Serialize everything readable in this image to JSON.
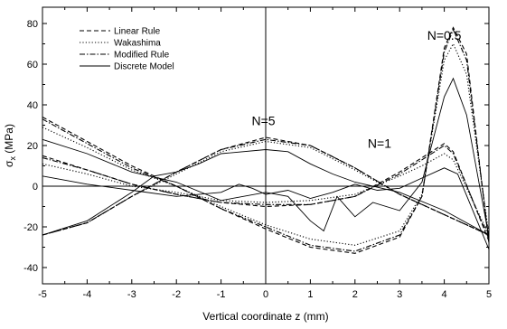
{
  "chart_data": {
    "type": "line",
    "xlabel": "Vertical coordinate z (mm)",
    "ylabel": "σ",
    "ylabel_sub": "x",
    "ylabel_unit": " (MPa)",
    "xlim": [
      -5,
      5
    ],
    "ylim": [
      -48,
      88
    ],
    "xticks": [
      -5,
      -4,
      -3,
      -2,
      -1,
      0,
      1,
      2,
      3,
      4,
      5
    ],
    "yticks": [
      -40,
      -20,
      0,
      20,
      40,
      60,
      80
    ],
    "grid": false,
    "legend_position": "top-left",
    "legend": [
      {
        "label": "Linear Rule",
        "style": "dashed"
      },
      {
        "label": "Wakashima",
        "style": "dotted"
      },
      {
        "label": "Modified Rule",
        "style": "dashdot"
      },
      {
        "label": "Discrete Model",
        "style": "solid"
      }
    ],
    "annotations": [
      {
        "text": "N=0.5",
        "x": 4.0,
        "y": 72
      },
      {
        "text": "N=5",
        "x": -0.05,
        "y": 30
      },
      {
        "text": "N=1",
        "x": 2.55,
        "y": 19
      }
    ],
    "series": [
      {
        "name": "Linear Rule",
        "group": "N=0.5",
        "style": "dashed",
        "points": [
          [
            -5,
            34
          ],
          [
            -4,
            22
          ],
          [
            -3,
            10
          ],
          [
            -2,
            0
          ],
          [
            -1,
            -11
          ],
          [
            0,
            -21
          ],
          [
            1,
            -30
          ],
          [
            2,
            -33
          ],
          [
            3,
            -25
          ],
          [
            3.5,
            -5
          ],
          [
            4,
            68
          ],
          [
            4.2,
            78
          ],
          [
            4.5,
            65
          ],
          [
            5,
            -28
          ]
        ]
      },
      {
        "name": "Wakashima",
        "group": "N=0.5",
        "style": "dotted",
        "points": [
          [
            -5,
            29
          ],
          [
            -4,
            19
          ],
          [
            -3,
            8
          ],
          [
            -2,
            0
          ],
          [
            -1,
            -10
          ],
          [
            0,
            -19
          ],
          [
            1,
            -26
          ],
          [
            2,
            -29
          ],
          [
            3,
            -22
          ],
          [
            3.5,
            -4
          ],
          [
            4,
            62
          ],
          [
            4.2,
            70
          ],
          [
            4.5,
            55
          ],
          [
            5,
            -24
          ]
        ]
      },
      {
        "name": "Modified Rule",
        "group": "N=0.5",
        "style": "dashdot",
        "points": [
          [
            -5,
            33
          ],
          [
            -4,
            21
          ],
          [
            -3,
            9
          ],
          [
            -2,
            0
          ],
          [
            -1,
            -11
          ],
          [
            0,
            -20
          ],
          [
            1,
            -29
          ],
          [
            2,
            -32
          ],
          [
            3,
            -24
          ],
          [
            3.5,
            -5
          ],
          [
            4,
            66
          ],
          [
            4.2,
            77
          ],
          [
            4.5,
            62
          ],
          [
            5,
            -27
          ]
        ]
      },
      {
        "name": "Discrete Model",
        "group": "N=0.5",
        "style": "solid",
        "points": [
          [
            -5,
            23
          ],
          [
            -4,
            16
          ],
          [
            -3,
            7
          ],
          [
            -2,
            2
          ],
          [
            -1,
            -7
          ],
          [
            0,
            -3
          ],
          [
            0.5,
            -5
          ],
          [
            1,
            -17
          ],
          [
            1.3,
            -22
          ],
          [
            1.6,
            -5
          ],
          [
            2,
            -15
          ],
          [
            2.4,
            -8
          ],
          [
            3,
            -12
          ],
          [
            3.5,
            2
          ],
          [
            4,
            44
          ],
          [
            4.2,
            53
          ],
          [
            4.5,
            35
          ],
          [
            5,
            -25
          ]
        ]
      },
      {
        "name": "Linear Rule",
        "group": "N=5",
        "style": "dashed",
        "points": [
          [
            -5,
            -24
          ],
          [
            -4,
            -18
          ],
          [
            -3,
            -5
          ],
          [
            -2,
            7
          ],
          [
            -1,
            18
          ],
          [
            0,
            24
          ],
          [
            1,
            20
          ],
          [
            2,
            9
          ],
          [
            3,
            -4
          ],
          [
            4,
            -14
          ],
          [
            5,
            -24
          ]
        ]
      },
      {
        "name": "Wakashima",
        "group": "N=5",
        "style": "dotted",
        "points": [
          [
            -5,
            -24
          ],
          [
            -4,
            -18
          ],
          [
            -3,
            -5
          ],
          [
            -2,
            6
          ],
          [
            -1,
            17
          ],
          [
            0,
            22
          ],
          [
            1,
            19
          ],
          [
            2,
            8
          ],
          [
            3,
            -4
          ],
          [
            4,
            -14
          ],
          [
            5,
            -24
          ]
        ]
      },
      {
        "name": "Modified Rule",
        "group": "N=5",
        "style": "dashdot",
        "points": [
          [
            -5,
            -24
          ],
          [
            -4,
            -18
          ],
          [
            -3,
            -5
          ],
          [
            -2,
            7
          ],
          [
            -1,
            18
          ],
          [
            0,
            23
          ],
          [
            1,
            20
          ],
          [
            2,
            9
          ],
          [
            3,
            -4
          ],
          [
            4,
            -14
          ],
          [
            5,
            -24
          ]
        ]
      },
      {
        "name": "Discrete Model",
        "group": "N=5",
        "style": "solid",
        "points": [
          [
            -5,
            -24
          ],
          [
            -4,
            -17
          ],
          [
            -3,
            -3
          ],
          [
            -2.5,
            5
          ],
          [
            -2,
            7
          ],
          [
            -1.5,
            11
          ],
          [
            -1,
            16
          ],
          [
            0,
            18
          ],
          [
            0.5,
            17
          ],
          [
            1,
            11
          ],
          [
            1.5,
            6
          ],
          [
            2,
            2
          ],
          [
            3,
            -3
          ],
          [
            4,
            -12
          ],
          [
            5,
            -24
          ]
        ]
      },
      {
        "name": "Linear Rule",
        "group": "N=1",
        "style": "dashed",
        "points": [
          [
            -5,
            15
          ],
          [
            -4,
            8
          ],
          [
            -3,
            1
          ],
          [
            -2,
            -4
          ],
          [
            -1,
            -8
          ],
          [
            0,
            -10
          ],
          [
            1,
            -9
          ],
          [
            2,
            -5
          ],
          [
            3,
            7
          ],
          [
            3.5,
            14
          ],
          [
            4,
            21
          ],
          [
            4.2,
            17
          ],
          [
            5,
            -27
          ]
        ]
      },
      {
        "name": "Wakashima",
        "group": "N=1",
        "style": "dotted",
        "points": [
          [
            -5,
            11
          ],
          [
            -4,
            6
          ],
          [
            -3,
            0
          ],
          [
            -2,
            -3
          ],
          [
            -1,
            -7
          ],
          [
            0,
            -8
          ],
          [
            1,
            -7
          ],
          [
            2,
            -4
          ],
          [
            3,
            5
          ],
          [
            3.5,
            10
          ],
          [
            4,
            16
          ],
          [
            4.2,
            13
          ],
          [
            5,
            -24
          ]
        ]
      },
      {
        "name": "Modified Rule",
        "group": "N=1",
        "style": "dashdot",
        "points": [
          [
            -5,
            14
          ],
          [
            -4,
            8
          ],
          [
            -3,
            1
          ],
          [
            -2,
            -4
          ],
          [
            -1,
            -8
          ],
          [
            0,
            -9
          ],
          [
            1,
            -9
          ],
          [
            2,
            -5
          ],
          [
            3,
            6
          ],
          [
            3.5,
            13
          ],
          [
            4,
            20
          ],
          [
            4.2,
            16
          ],
          [
            5,
            -26
          ]
        ]
      },
      {
        "name": "Discrete Model",
        "group": "N=1",
        "style": "solid",
        "points": [
          [
            -5,
            5
          ],
          [
            -4,
            1
          ],
          [
            -3,
            -2
          ],
          [
            -2,
            -5
          ],
          [
            -1,
            -3
          ],
          [
            -0.6,
            1
          ],
          [
            -0.3,
            -1
          ],
          [
            0,
            -4
          ],
          [
            0.5,
            -2
          ],
          [
            1,
            -6
          ],
          [
            1.5,
            -3
          ],
          [
            2,
            1
          ],
          [
            2.5,
            -2
          ],
          [
            3,
            -1
          ],
          [
            3.5,
            4
          ],
          [
            4,
            9
          ],
          [
            4.3,
            6
          ],
          [
            5,
            -31
          ]
        ]
      }
    ]
  }
}
